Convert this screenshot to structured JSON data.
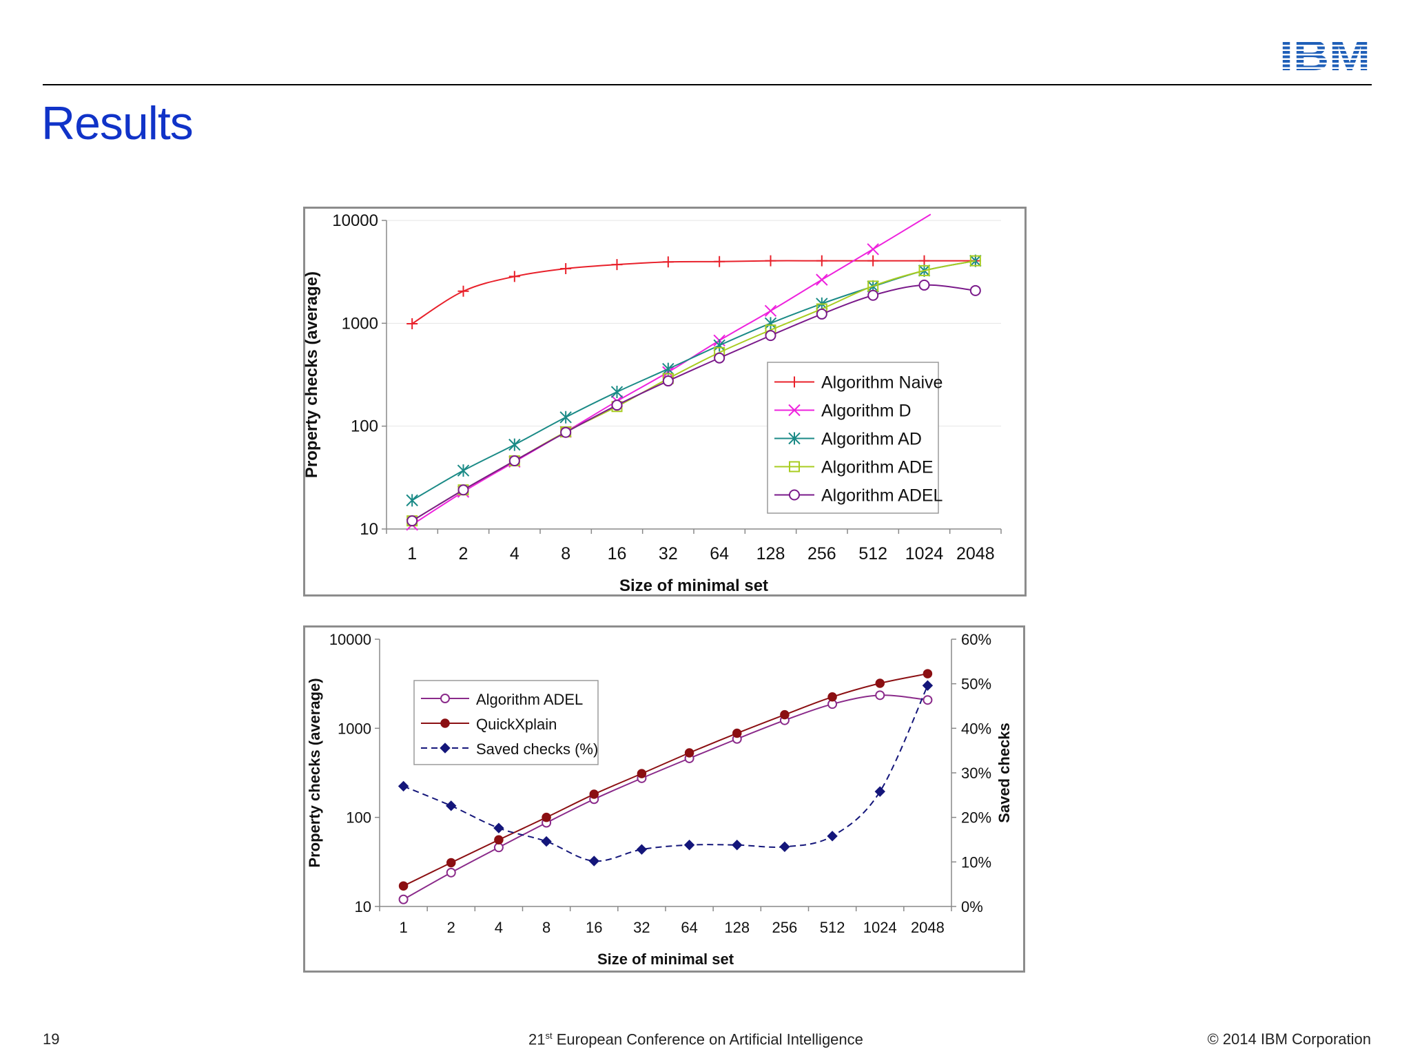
{
  "slide": {
    "title": "Results",
    "page_number": "19",
    "footer_center_pre": "21",
    "footer_center_sup": "st",
    "footer_center_post": " European Conference on Artificial Intelligence",
    "footer_right": "© 2014 IBM Corporation",
    "logo_text": "IBM"
  },
  "chart_data": [
    {
      "type": "line",
      "title": "",
      "xlabel": "Size of minimal set",
      "ylabel": "Property checks (average)",
      "yscale": "log",
      "ylim": [
        10,
        10000
      ],
      "yticks": [
        "10",
        "100",
        "1000",
        "10000"
      ],
      "categories": [
        "1",
        "2",
        "4",
        "8",
        "16",
        "32",
        "64",
        "128",
        "256",
        "512",
        "1024",
        "2048"
      ],
      "legend_position": "center-right",
      "series": [
        {
          "name": "Algorithm Naive",
          "color": "#e8202a",
          "marker": "plus",
          "values": [
            990,
            2050,
            2850,
            3400,
            3720,
            3950,
            3980,
            4050,
            4050,
            4050,
            4050,
            4050
          ]
        },
        {
          "name": "Algorithm D",
          "color": "#ee22dd",
          "marker": "x",
          "values": [
            11,
            23,
            45,
            88,
            175,
            335,
            680,
            1320,
            2650,
            5250,
            10500,
            null
          ]
        },
        {
          "name": "Algorithm AD",
          "color": "#1a8a86",
          "marker": "star",
          "values": [
            19,
            37,
            66,
            122,
            215,
            360,
            610,
            1000,
            1550,
            2280,
            3250,
            4050
          ]
        },
        {
          "name": "Algorithm ADE",
          "color": "#a8cc20",
          "marker": "square",
          "values": [
            12,
            24,
            46,
            88,
            155,
            290,
            520,
            860,
            1380,
            2300,
            3250,
            4050
          ]
        },
        {
          "name": "Algorithm ADEL",
          "color": "#7a1a8a",
          "marker": "circle",
          "values": [
            12,
            24,
            46,
            87,
            160,
            275,
            460,
            760,
            1230,
            1870,
            2350,
            2080
          ]
        }
      ]
    },
    {
      "type": "line",
      "title": "",
      "xlabel": "Size of minimal set",
      "ylabel": "Property checks (average)",
      "y2label": "Saved checks",
      "yscale": "log",
      "ylim": [
        10,
        10000
      ],
      "yticks": [
        "10",
        "100",
        "1000",
        "10000"
      ],
      "y2lim": [
        0,
        60
      ],
      "y2ticks": [
        "0%",
        "10%",
        "20%",
        "30%",
        "40%",
        "50%",
        "60%"
      ],
      "categories": [
        "1",
        "2",
        "4",
        "8",
        "16",
        "32",
        "64",
        "128",
        "256",
        "512",
        "1024",
        "2048"
      ],
      "legend_position": "top-left",
      "series": [
        {
          "name": "Algorithm ADEL",
          "color": "#8a2a8a",
          "marker": "circle-open",
          "axis": "left",
          "values": [
            12,
            24,
            46,
            87,
            160,
            275,
            460,
            760,
            1230,
            1870,
            2350,
            2080
          ]
        },
        {
          "name": "QuickXplain",
          "color": "#8b0f12",
          "marker": "circle-filled",
          "axis": "left",
          "values": [
            17,
            31,
            56,
            100,
            182,
            310,
            530,
            880,
            1420,
            2250,
            3200,
            4100
          ]
        },
        {
          "name": "Saved checks (%)",
          "color": "#14167a",
          "marker": "diamond",
          "dashed": true,
          "axis": "right",
          "values": [
            27,
            22.6,
            17.6,
            14.6,
            10.2,
            12.8,
            13.8,
            13.8,
            13.4,
            15.8,
            25.8,
            49.6
          ]
        }
      ]
    }
  ]
}
